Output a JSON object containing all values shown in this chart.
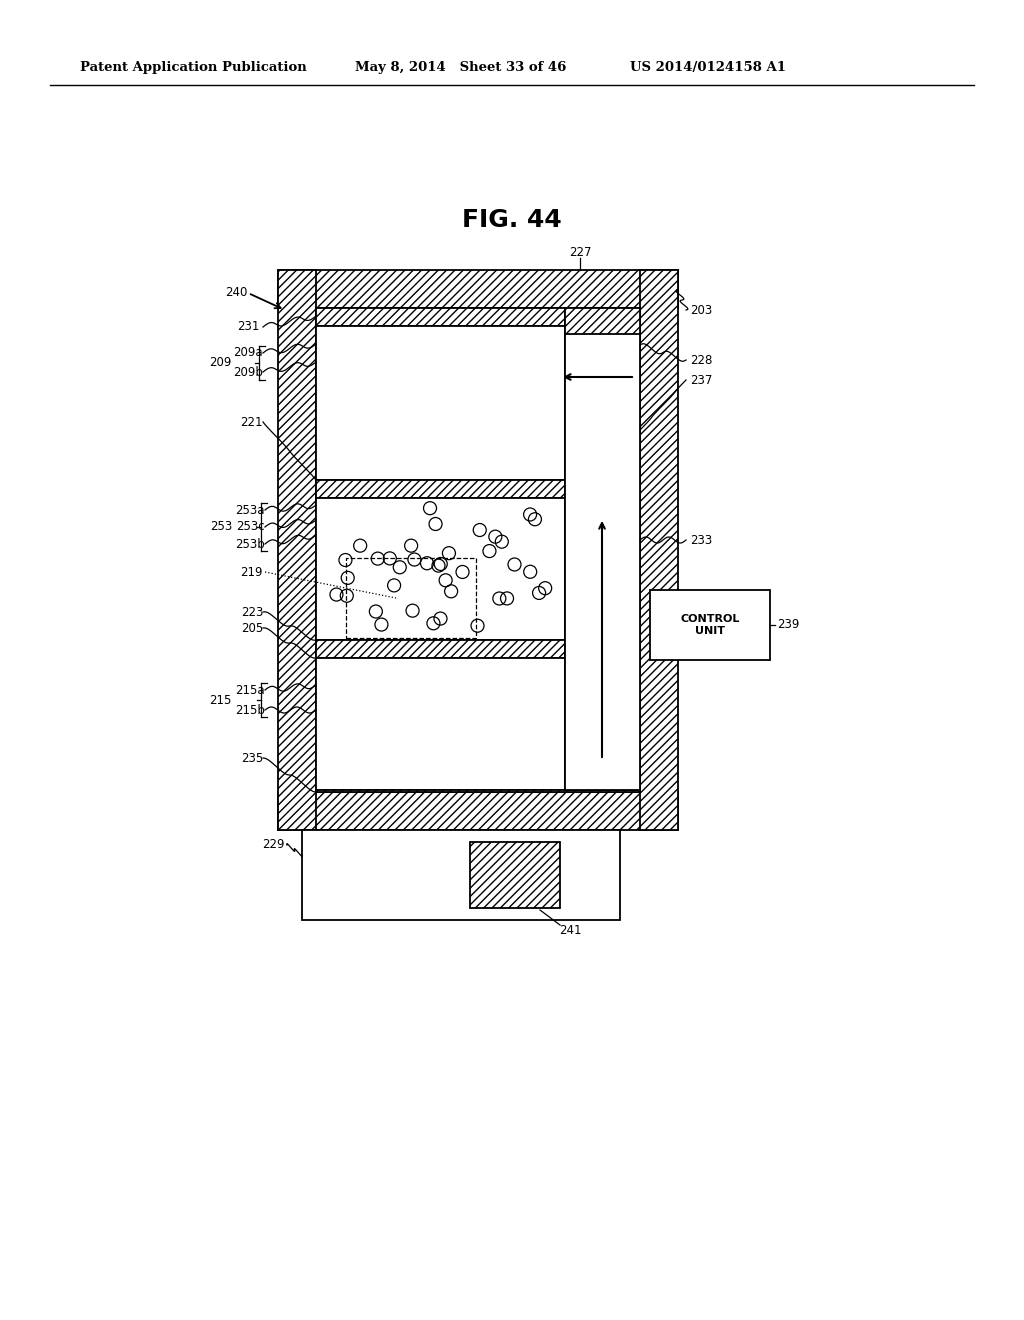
{
  "bg_color": "#ffffff",
  "header_left": "Patent Application Publication",
  "header_mid": "May 8, 2014   Sheet 33 of 46",
  "header_right": "US 2014/0124158 A1",
  "fig_label": "FIG. 44"
}
